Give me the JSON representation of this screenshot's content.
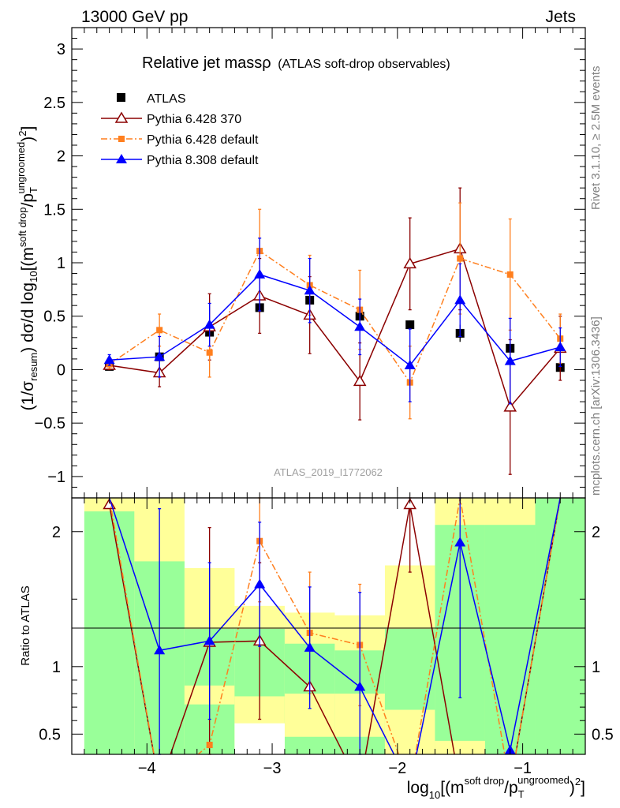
{
  "header": {
    "left": "13000 GeV pp",
    "right": "Jets"
  },
  "side_texts": {
    "rivet": "Rivet 3.1.10, ≥ 2.5M events",
    "mcplots": "mcplots.cern.ch [arXiv:1306.3436]"
  },
  "watermark": "ATLAS_2019_I1772062",
  "ratio_ylabel": "Ratio to ATLAS",
  "colors": {
    "pythia6_370": "#8b0000",
    "pythia6_default": "#ff7f1e",
    "pythia8": "#0000ff",
    "data": "#000000",
    "band_inner": "#99ff99",
    "band_outer": "#ffff99"
  },
  "chart_data": [
    {
      "type": "scatter",
      "title": "Relative jet massρ (ATLAS soft-drop observables)",
      "xlabel": "log10[(m^soft drop/pT^ungroomed)^2]",
      "ylabel": "(1/σresum) dσ/d log10[(m^soft drop/pT^ungroomed)^2]",
      "xlim": [
        -4.6,
        -0.5
      ],
      "ylim": [
        -1.2,
        3.2
      ],
      "xticks": [
        -4,
        -3,
        -2,
        -1
      ],
      "yticks": [
        -1,
        -0.5,
        0,
        0.5,
        1,
        1.5,
        2,
        2.5,
        3
      ],
      "xtick_labels": [
        "−4",
        "−3",
        "−2",
        "−1"
      ],
      "ytick_labels": [
        "−1",
        "−0.5",
        "0",
        "0.5",
        "1",
        "1.5",
        "2",
        "2.5",
        "3"
      ],
      "legend_position": "top-left",
      "x": [
        -4.3,
        -3.9,
        -3.5,
        -3.1,
        -2.7,
        -2.3,
        -1.9,
        -1.5,
        -1.1,
        -0.7
      ],
      "series": [
        {
          "name": "ATLAS",
          "marker": "square",
          "values": [
            0.03,
            0.12,
            0.35,
            0.58,
            0.65,
            0.5,
            0.42,
            0.34,
            0.2,
            0.02
          ],
          "err": [
            0.02,
            0.02,
            0.03,
            0.05,
            0.05,
            0.05,
            0.04,
            0.08,
            0.04,
            0.03
          ]
        },
        {
          "name": "Pythia 6.428 370",
          "marker": "triangle-open",
          "dash": "solid",
          "values": [
            0.04,
            -0.03,
            0.4,
            0.69,
            0.51,
            -0.11,
            0.99,
            1.13,
            -0.35,
            0.2
          ],
          "err": [
            0.04,
            0.13,
            0.31,
            0.35,
            0.36,
            0.36,
            0.43,
            0.57,
            0.63,
            0.3
          ]
        },
        {
          "name": "Pythia 6.428 default",
          "marker": "square-small",
          "dash": "dashdot",
          "values": [
            0.05,
            0.37,
            0.16,
            1.11,
            0.79,
            0.56,
            -0.12,
            1.04,
            0.89,
            0.29
          ],
          "err": [
            0.04,
            0.15,
            0.23,
            0.39,
            0.28,
            0.37,
            0.34,
            0.52,
            0.52,
            0.23
          ]
        },
        {
          "name": "Pythia 8.308 default",
          "marker": "triangle",
          "dash": "solid",
          "values": [
            0.09,
            0.12,
            0.42,
            0.89,
            0.74,
            0.4,
            0.04,
            0.65,
            0.08,
            0.21
          ],
          "err": [
            0.05,
            0.19,
            0.2,
            0.34,
            0.3,
            0.26,
            0.34,
            0.34,
            0.4,
            0.18
          ]
        }
      ]
    },
    {
      "type": "scatter",
      "title": "",
      "xlabel": "log10[(m^soft drop/pT^ungroomed)^2]",
      "ylabel": "Ratio to ATLAS",
      "xlim": [
        -4.6,
        -0.5
      ],
      "ylim": [
        0.35,
        2.25
      ],
      "yticks": [
        0.5,
        1,
        2
      ],
      "ytick_labels": [
        "0.5",
        "1",
        "2"
      ],
      "bands": {
        "edges": [
          -4.5,
          -4.1,
          -3.7,
          -3.3,
          -2.9,
          -2.5,
          -2.1,
          -1.7,
          -1.3,
          -0.9,
          -0.5
        ],
        "inner": [
          [
            0.35,
            2.15
          ],
          [
            0.35,
            1.78
          ],
          [
            0.35,
            1.28
          ],
          [
            0.35,
            1.28
          ],
          [
            0.35,
            1.17
          ],
          [
            0.35,
            1.12
          ],
          [
            0.35,
            1.28
          ],
          [
            0.35,
            2.05
          ],
          [
            0.35,
            2.05
          ],
          [
            0.35,
            2.25
          ]
        ],
        "outer": [
          [
            0.35,
            2.25
          ],
          [
            0.35,
            2.25
          ],
          [
            0.35,
            1.73
          ],
          [
            0.35,
            1.45
          ],
          [
            0.35,
            1.4
          ],
          [
            0.35,
            1.38
          ],
          [
            0.35,
            1.75
          ],
          [
            0.35,
            2.25
          ],
          [
            0.35,
            2.25
          ],
          [
            0.35,
            2.25
          ]
        ],
        "gap": [
          null,
          null,
          [
            0.72,
            0.86
          ],
          [
            0.35,
            0.78
          ],
          [
            0.48,
            0.8
          ],
          [
            0.48,
            0.8
          ],
          [
            0.35,
            0.68
          ],
          [
            0.35,
            0.45
          ],
          null,
          null
        ]
      },
      "series": [
        {
          "name": "Pythia 6.428 370",
          "values": [
            2.2,
            null,
            1.18,
            1.19,
            0.85,
            null,
            2.2,
            null,
            null,
            2.25
          ],
          "err": [
            null,
            null,
            0.85,
            0.58,
            null,
            null,
            0.5,
            null,
            null,
            null
          ]
        },
        {
          "name": "Pythia 6.428 default",
          "values": [
            2.25,
            null,
            0.42,
            1.93,
            1.25,
            1.16,
            null,
            2.25,
            null,
            2.25
          ],
          "err": [
            null,
            null,
            null,
            0.45,
            0.45,
            0.45,
            null,
            null,
            null,
            null
          ]
        },
        {
          "name": "Pythia 8.308 default",
          "values": [
            2.25,
            1.12,
            1.19,
            1.61,
            1.14,
            0.85,
            null,
            1.92,
            0.38,
            2.25
          ],
          "err": [
            null,
            1.05,
            0.58,
            0.46,
            0.45,
            0.7,
            null,
            1.15,
            null,
            null
          ]
        }
      ]
    }
  ]
}
